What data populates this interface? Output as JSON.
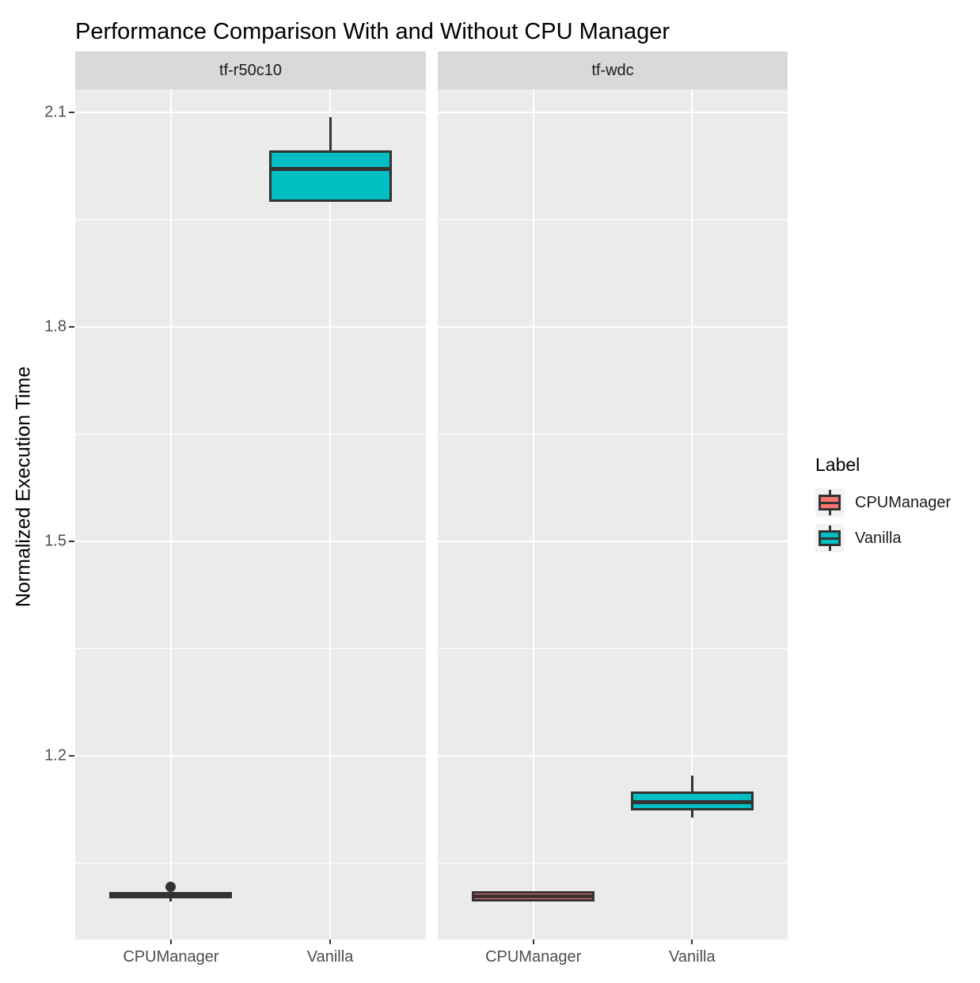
{
  "title": "Performance Comparison With and Without CPU Manager",
  "legend": {
    "title": "Label",
    "entries": [
      {
        "label": "CPUManager",
        "color": "#F8766D"
      },
      {
        "label": "Vanilla",
        "color": "#00BFC4"
      }
    ]
  },
  "colors": {
    "panel_background": "#ebebeb",
    "strip_background": "#d9d9d9",
    "grid": "#ffffff",
    "box_stroke": "#333333",
    "axis_text": "#4d4d4d",
    "cpumanager_fill": "#F8766D",
    "vanilla_fill": "#00BFC4"
  },
  "chart_data": {
    "type": "boxplot",
    "title": "Performance Comparison With and Without CPU Manager",
    "xlabel": "",
    "ylabel": "Normalized Execution Time",
    "x_categories": [
      "CPUManager",
      "Vanilla"
    ],
    "y_ticks_major": [
      2.1,
      1.8,
      1.5,
      1.2
    ],
    "y_tick_labels": [
      "2.1",
      "1.8",
      "1.5",
      "1.2"
    ],
    "y_ticks_minor": [
      1.95,
      1.65,
      1.35,
      1.05
    ],
    "ylim": [
      0.943,
      2.132
    ],
    "grid": true,
    "legend_position": "right",
    "series_colors": {
      "CPUManager": "#F8766D",
      "Vanilla": "#00BFC4"
    },
    "facets": [
      {
        "name": "tf-r50c10",
        "boxes": [
          {
            "group": "CPUManager",
            "min": 0.9965,
            "q1": 1.0005,
            "median": 1.005,
            "q3": 1.0095,
            "max": 1.0095,
            "outliers": [
              1.0165
            ]
          },
          {
            "group": "Vanilla",
            "min": 1.975,
            "q1": 1.975,
            "median": 2.021,
            "q3": 2.047,
            "max": 2.093,
            "outliers": []
          }
        ]
      },
      {
        "name": "tf-wdc",
        "boxes": [
          {
            "group": "CPUManager",
            "min": 0.9965,
            "q1": 0.9965,
            "median": 1.0035,
            "q3": 1.01,
            "max": 1.01,
            "outliers": []
          },
          {
            "group": "Vanilla",
            "min": 1.113,
            "q1": 1.124,
            "median": 1.135,
            "q3": 1.15,
            "max": 1.172,
            "outliers": []
          }
        ]
      }
    ]
  }
}
